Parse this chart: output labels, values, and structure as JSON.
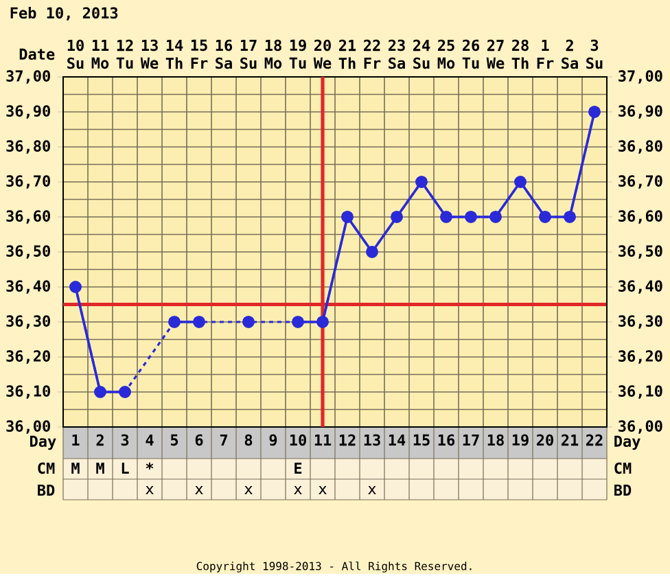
{
  "chart_data": {
    "type": "line",
    "title": "Feb 10, 2013",
    "xlabel": "Day",
    "categories": [
      "1",
      "2",
      "3",
      "4",
      "5",
      "6",
      "7",
      "8",
      "9",
      "10",
      "11",
      "12",
      "13",
      "14",
      "15",
      "16",
      "17",
      "18",
      "19",
      "20",
      "21",
      "22"
    ],
    "series": [
      {
        "color": "#2a2ad8",
        "values": [
          36.4,
          36.1,
          36.1,
          null,
          36.3,
          36.3,
          null,
          36.3,
          null,
          36.3,
          36.3,
          36.6,
          36.5,
          36.6,
          36.7,
          36.6,
          36.6,
          36.6,
          36.7,
          36.6,
          36.6,
          36.9
        ]
      }
    ],
    "ylim": [
      36.0,
      37.0
    ],
    "yticks": [
      {
        "value": 36.0,
        "label": "36,00"
      },
      {
        "value": 36.1,
        "label": "36,10"
      },
      {
        "value": 36.2,
        "label": "36,20"
      },
      {
        "value": 36.3,
        "label": "36,30"
      },
      {
        "value": 36.4,
        "label": "36,40"
      },
      {
        "value": 36.5,
        "label": "36,50"
      },
      {
        "value": 36.6,
        "label": "36,60"
      },
      {
        "value": 36.7,
        "label": "36,70"
      },
      {
        "value": 36.8,
        "label": "36,80"
      },
      {
        "value": 36.9,
        "label": "36,90"
      },
      {
        "value": 37.0,
        "label": "37,00"
      }
    ],
    "y2lim": [
      36.0,
      37.0
    ],
    "y2ticks": [
      {
        "value": 36.0,
        "label": "36,00"
      },
      {
        "value": 36.1,
        "label": "36,10"
      },
      {
        "value": 36.2,
        "label": "36,20"
      },
      {
        "value": 36.3,
        "label": "36,30"
      },
      {
        "value": 36.4,
        "label": "36,40"
      },
      {
        "value": 36.5,
        "label": "36,50"
      },
      {
        "value": 36.6,
        "label": "36,60"
      },
      {
        "value": 36.7,
        "label": "36,70"
      },
      {
        "value": 36.8,
        "label": "36,80"
      },
      {
        "value": 36.9,
        "label": "36,90"
      },
      {
        "value": 37.0,
        "label": "37,00"
      }
    ],
    "grid": true,
    "marker": "circle",
    "line_style": "solid",
    "ref_lines": [
      {
        "axis": "y",
        "value": 36.35,
        "color": "#e02828"
      },
      {
        "axis": "x",
        "value": "11",
        "color": "#e02828"
      }
    ],
    "annotations": [
      "Date",
      "10",
      "11",
      "12",
      "13",
      "14",
      "15",
      "16",
      "17",
      "18",
      "19",
      "20",
      "21",
      "22",
      "23",
      "24",
      "25",
      "26",
      "27",
      "28",
      "1",
      "2",
      "3",
      "Su",
      "Mo",
      "Tu",
      "We",
      "Th",
      "Fr",
      "Sa",
      "Su",
      "Mo",
      "Tu",
      "We",
      "Th",
      "Fr",
      "Sa",
      "Su",
      "Mo",
      "Tu",
      "We",
      "Th",
      "Fr",
      "Sa",
      "Su",
      "CM",
      "M",
      "M",
      "L",
      "*",
      null,
      null,
      null,
      null,
      null,
      "E",
      null,
      null,
      null,
      null,
      null,
      null,
      null,
      null,
      null,
      null,
      null,
      null,
      "BD",
      null,
      null,
      null,
      "x",
      null,
      "x",
      null,
      "x",
      null,
      "x",
      "x",
      null,
      "x",
      null,
      null,
      null,
      null,
      null,
      null,
      null,
      null,
      null,
      "Copyright 1998-2013 - All Rights Reserved."
    ]
  }
}
